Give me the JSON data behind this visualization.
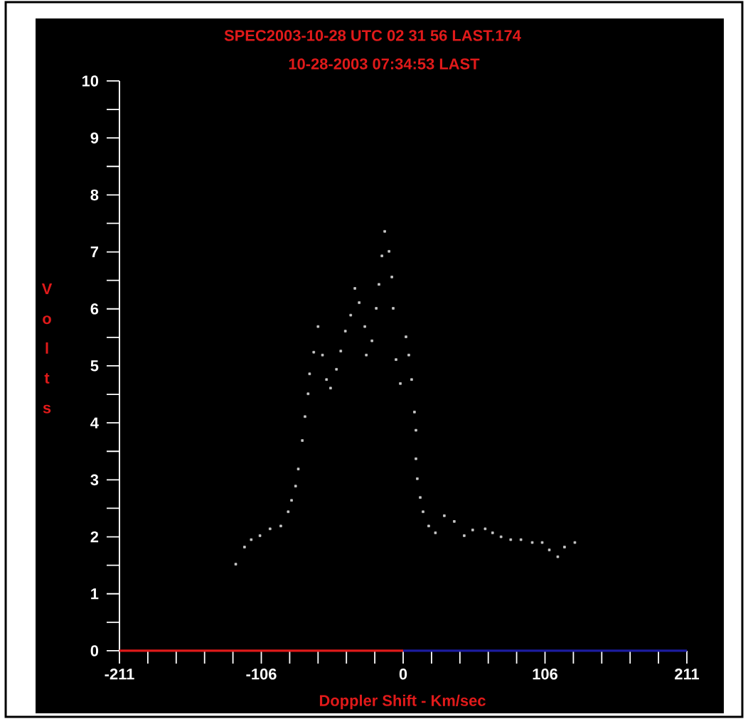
{
  "chart_data": {
    "type": "scatter",
    "title": "SPEC2003-10-28 UTC  02 31 56 LAST.174",
    "subtitle": "10-28-2003  07:34:53 LAST",
    "xlabel": "Doppler Shift - Km/sec",
    "ylabel": "Volts",
    "color": "#c8c8c8",
    "marker": "square",
    "x": [
      -124.5,
      -118,
      -113,
      -106.5,
      -99,
      -91,
      -85.5,
      -83,
      -80,
      -78,
      -75,
      -73,
      -70.7,
      -69.6,
      -66.5,
      -63.3,
      -60,
      -57,
      -54,
      -49.6,
      -46.4,
      -43,
      -39,
      -35.9,
      -32.7,
      -28.5,
      -27.4,
      -23.2,
      -20,
      -18,
      -15.8,
      -13.7,
      -10.5,
      -8.4,
      -7.4,
      -5.3,
      -2.1,
      2.1,
      4.2,
      6.3,
      8.4,
      9.5,
      9.5,
      10.5,
      12.7,
      14.8,
      19,
      24,
      30.6,
      38,
      45.4,
      51.7,
      61,
      66.5,
      72.8,
      80,
      87.6,
      96,
      103.4,
      108.7,
      115,
      120,
      127.7
    ],
    "values": [
      1.52,
      1.82,
      1.95,
      2.02,
      2.14,
      2.19,
      2.44,
      2.64,
      2.89,
      3.19,
      3.69,
      4.11,
      4.51,
      4.86,
      5.24,
      5.69,
      5.19,
      4.76,
      4.61,
      4.94,
      5.26,
      5.61,
      5.89,
      6.36,
      6.11,
      5.69,
      5.19,
      5.44,
      6.01,
      6.43,
      6.93,
      7.36,
      7.01,
      6.56,
      6.01,
      5.11,
      4.69,
      5.51,
      5.19,
      4.76,
      4.19,
      3.87,
      3.37,
      3.02,
      2.69,
      2.44,
      2.19,
      2.07,
      2.37,
      2.27,
      2.02,
      2.12,
      2.14,
      2.07,
      2.0,
      1.95,
      1.95,
      1.9,
      1.9,
      1.77,
      1.65,
      1.82,
      1.9
    ],
    "xlim": [
      -211,
      211
    ],
    "ylim": [
      0,
      10
    ],
    "xticks": [
      -211,
      {
        "value": -189.9,
        "label": null
      },
      {
        "value": -168.8,
        "label": null
      },
      {
        "value": -147.7,
        "label": null
      },
      {
        "value": -126.6,
        "label": null
      },
      {
        "value": -105.5,
        "label": "-106"
      },
      {
        "value": -84.4,
        "label": null
      },
      {
        "value": -63.3,
        "label": null
      },
      {
        "value": -42.2,
        "label": null
      },
      {
        "value": -21.1,
        "label": null
      },
      0,
      {
        "value": 21.1,
        "label": null
      },
      {
        "value": 42.2,
        "label": null
      },
      {
        "value": 63.3,
        "label": null
      },
      {
        "value": 84.4,
        "label": null
      },
      {
        "value": 105.5,
        "label": "106"
      },
      {
        "value": 126.6,
        "label": null
      },
      {
        "value": 147.7,
        "label": null
      },
      {
        "value": 168.8,
        "label": null
      },
      {
        "value": 189.9,
        "label": null
      },
      211
    ],
    "yticks": [
      0,
      {
        "value": 0.5,
        "label": null
      },
      1,
      {
        "value": 1.5,
        "label": null
      },
      2,
      {
        "value": 2.5,
        "label": null
      },
      3,
      {
        "value": 3.5,
        "label": null
      },
      4,
      {
        "value": 4.5,
        "label": null
      },
      5,
      {
        "value": 5.5,
        "label": null
      },
      6,
      {
        "value": 6.5,
        "label": null
      },
      7,
      {
        "value": 7.5,
        "label": null
      },
      8,
      {
        "value": 8.5,
        "label": null
      },
      9,
      {
        "value": 9.5,
        "label": null
      },
      10
    ]
  }
}
